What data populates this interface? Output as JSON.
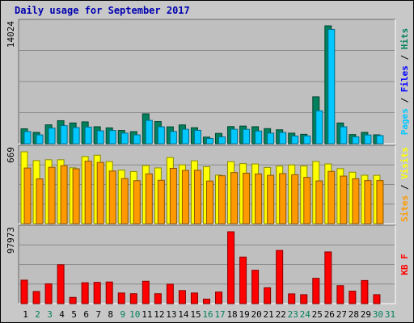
{
  "chart_data": [
    {
      "type": "bar",
      "title": "Daily usage for September 2017",
      "categories": [
        "1",
        "2",
        "3",
        "4",
        "5",
        "6",
        "7",
        "8",
        "9",
        "10",
        "11",
        "12",
        "13",
        "14",
        "15",
        "16",
        "17",
        "18",
        "19",
        "20",
        "21",
        "22",
        "23",
        "24",
        "25",
        "26",
        "27",
        "28",
        "29",
        "30",
        "31"
      ],
      "weekend_days": [
        "2",
        "3",
        "9",
        "10",
        "16",
        "17",
        "23",
        "24",
        "30",
        "31"
      ],
      "ylim": [
        0,
        14024
      ],
      "tick_label": "14024",
      "legend": [
        "Pages",
        "Files",
        "Hits"
      ],
      "series": [
        {
          "name": "Hits",
          "color": "#00805c",
          "values": [
            1780,
            1350,
            2250,
            2740,
            2470,
            2600,
            2020,
            1890,
            1580,
            1440,
            3560,
            2640,
            2010,
            2240,
            1910,
            790,
            1230,
            2040,
            2100,
            2020,
            1800,
            1660,
            1260,
            1120,
            5580,
            14024,
            2470,
            1090,
            1350,
            1060,
            0
          ]
        },
        {
          "name": "Files",
          "color": "#00c8ff",
          "values": [
            1450,
            1050,
            1860,
            2150,
            1920,
            1980,
            1530,
            1570,
            1260,
            1050,
            2780,
            2010,
            1460,
            1720,
            1590,
            620,
            810,
            1720,
            1710,
            1510,
            1260,
            1340,
            920,
            930,
            3920,
            13590,
            2010,
            820,
            1040,
            970,
            0
          ]
        }
      ]
    },
    {
      "type": "bar",
      "ylim": [
        0,
        669
      ],
      "tick_label": "669",
      "legend": [
        "Sites",
        "Visits"
      ],
      "series": [
        {
          "name": "Visits",
          "color": "#ffff00",
          "values": [
            669,
            587,
            595,
            595,
            520,
            625,
            637,
            578,
            498,
            485,
            541,
            519,
            616,
            548,
            585,
            530,
            452,
            577,
            559,
            556,
            523,
            536,
            547,
            537,
            579,
            556,
            512,
            479,
            451,
            450,
            0
          ]
        },
        {
          "name": "Sites",
          "color": "#ff9900",
          "values": [
            518,
            417,
            525,
            540,
            511,
            582,
            570,
            490,
            420,
            400,
            464,
            404,
            515,
            496,
            497,
            397,
            446,
            476,
            470,
            463,
            450,
            466,
            456,
            431,
            398,
            487,
            443,
            418,
            401,
            401,
            0
          ]
        }
      ]
    },
    {
      "type": "bar",
      "ylim": [
        0,
        97973
      ],
      "tick_label": "97973",
      "legend": [
        "KB F"
      ],
      "series": [
        {
          "name": "KB F",
          "color": "#ff0000",
          "values": [
            32000,
            16500,
            27000,
            53000,
            8500,
            28500,
            29000,
            29500,
            14500,
            13500,
            30500,
            13500,
            26500,
            17800,
            14500,
            6200,
            15800,
            97973,
            63500,
            45500,
            21700,
            72500,
            13300,
            12200,
            34500,
            70500,
            24500,
            17000,
            31500,
            12200,
            0
          ]
        }
      ]
    }
  ]
}
